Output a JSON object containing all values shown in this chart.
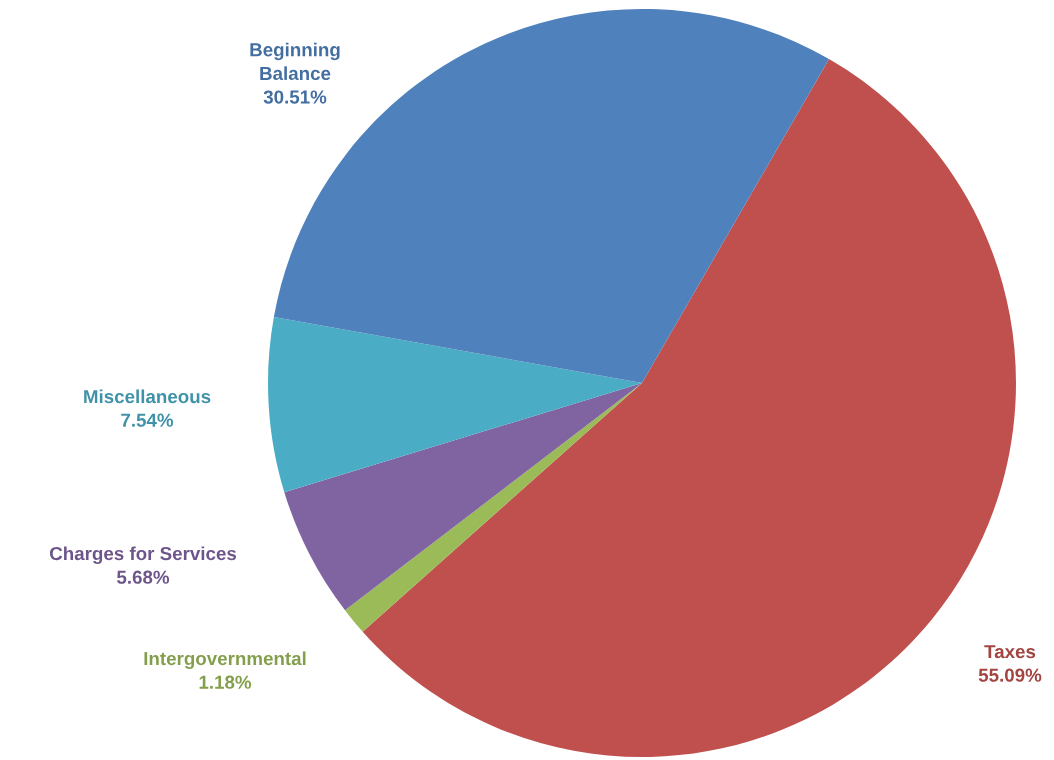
{
  "chart_data": {
    "type": "pie",
    "categories": [
      "Taxes",
      "Intergovernmental",
      "Charges for Services",
      "Miscellaneous",
      "Beginning Balance"
    ],
    "values": [
      55.09,
      1.18,
      5.68,
      7.54,
      30.51
    ],
    "colors": [
      "#c0504d",
      "#9bbb59",
      "#8064a2",
      "#4bacc6",
      "#4f81bd"
    ],
    "value_labels": [
      "55.09%",
      "1.18%",
      "5.68%",
      "7.54%",
      "30.51%"
    ]
  }
}
